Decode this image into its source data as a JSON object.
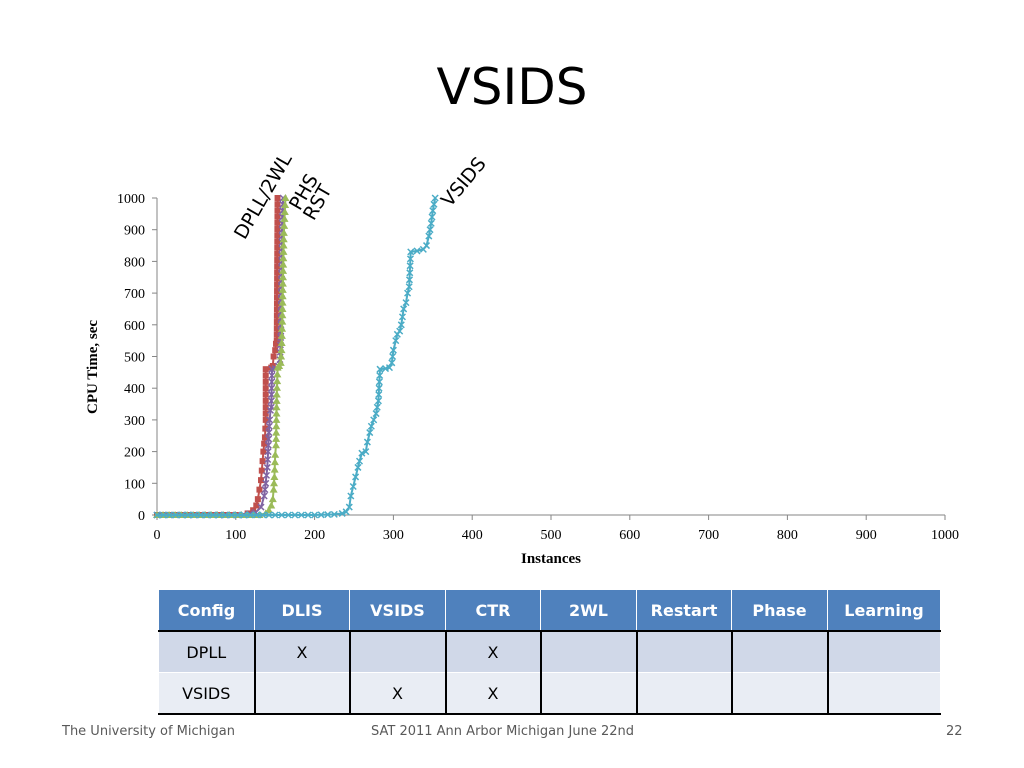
{
  "slide": {
    "title": "VSIDS",
    "footer_left": "The University of Michigan",
    "footer_center": "SAT 2011 Ann Arbor Michigan June 22nd",
    "page_number": "22"
  },
  "chart_data": {
    "type": "line",
    "title": "",
    "xlabel": "Instances",
    "ylabel": "CPU Time, sec",
    "xlim": [
      0,
      1000
    ],
    "ylim": [
      0,
      1000
    ],
    "xticks": [
      0,
      100,
      200,
      300,
      400,
      500,
      600,
      700,
      800,
      900,
      1000
    ],
    "yticks": [
      0,
      100,
      200,
      300,
      400,
      500,
      600,
      700,
      800,
      900,
      1000
    ],
    "series": [
      {
        "name": "DPLL/2WL",
        "color": "#c0504d",
        "marker": "square",
        "points": [
          [
            0,
            0
          ],
          [
            100,
            0
          ],
          [
            115,
            5
          ],
          [
            122,
            15
          ],
          [
            126,
            30
          ],
          [
            128,
            50
          ],
          [
            130,
            80
          ],
          [
            132,
            110
          ],
          [
            133,
            140
          ],
          [
            134,
            170
          ],
          [
            135,
            200
          ],
          [
            136,
            225
          ],
          [
            137,
            245
          ],
          [
            138,
            300
          ],
          [
            138,
            460
          ],
          [
            145,
            465
          ],
          [
            147,
            470
          ],
          [
            148,
            500
          ],
          [
            150,
            520
          ],
          [
            151,
            540
          ],
          [
            152,
            550
          ],
          [
            153,
            1000
          ]
        ]
      },
      {
        "name": "PHS",
        "color": "#8064a2",
        "marker": "x",
        "points": [
          [
            0,
            0
          ],
          [
            110,
            0
          ],
          [
            125,
            8
          ],
          [
            132,
            25
          ],
          [
            136,
            60
          ],
          [
            138,
            100
          ],
          [
            140,
            150
          ],
          [
            141,
            200
          ],
          [
            142,
            260
          ],
          [
            143,
            300
          ],
          [
            144,
            330
          ],
          [
            145,
            340
          ],
          [
            146,
            460
          ],
          [
            150,
            462
          ],
          [
            154,
            470
          ],
          [
            156,
            490
          ],
          [
            157,
            560
          ],
          [
            158,
            740
          ],
          [
            159,
            920
          ],
          [
            160,
            1000
          ]
        ]
      },
      {
        "name": "RST",
        "color": "#9bbb59",
        "marker": "triangle",
        "points": [
          [
            0,
            0
          ],
          [
            130,
            0
          ],
          [
            138,
            5
          ],
          [
            142,
            15
          ],
          [
            145,
            30
          ],
          [
            147,
            50
          ],
          [
            148,
            80
          ],
          [
            149,
            120
          ],
          [
            150,
            190
          ],
          [
            151,
            220
          ],
          [
            152,
            380
          ],
          [
            153,
            465
          ],
          [
            155,
            470
          ],
          [
            157,
            480
          ],
          [
            158,
            520
          ],
          [
            159,
            610
          ],
          [
            160,
            770
          ],
          [
            161,
            890
          ],
          [
            163,
            1000
          ]
        ]
      },
      {
        "name": "VSIDS",
        "color": "#4bacc6",
        "marker": "x",
        "points": [
          [
            0,
            0
          ],
          [
            150,
            0
          ],
          [
            200,
            0
          ],
          [
            225,
            2
          ],
          [
            235,
            5
          ],
          [
            240,
            10
          ],
          [
            244,
            25
          ],
          [
            246,
            60
          ],
          [
            249,
            90
          ],
          [
            252,
            120
          ],
          [
            255,
            150
          ],
          [
            257,
            170
          ],
          [
            260,
            195
          ],
          [
            265,
            200
          ],
          [
            267,
            230
          ],
          [
            270,
            260
          ],
          [
            272,
            280
          ],
          [
            275,
            300
          ],
          [
            278,
            320
          ],
          [
            281,
            360
          ],
          [
            283,
            460
          ],
          [
            290,
            462
          ],
          [
            295,
            465
          ],
          [
            298,
            480
          ],
          [
            300,
            520
          ],
          [
            303,
            550
          ],
          [
            305,
            570
          ],
          [
            308,
            580
          ],
          [
            310,
            600
          ],
          [
            313,
            650
          ],
          [
            316,
            670
          ],
          [
            318,
            700
          ],
          [
            320,
            720
          ],
          [
            322,
            830
          ],
          [
            330,
            833
          ],
          [
            338,
            838
          ],
          [
            342,
            850
          ],
          [
            345,
            880
          ],
          [
            348,
            920
          ],
          [
            350,
            960
          ],
          [
            353,
            1000
          ]
        ]
      }
    ]
  },
  "labels": {
    "dpll2wl": "DPLL/2WL",
    "phs": "PHS",
    "rst": "RST",
    "vsids": "VSIDS"
  },
  "table": {
    "headers": [
      "Config",
      "DLIS",
      "VSIDS",
      "CTR",
      "2WL",
      "Restart",
      "Phase",
      "Learning"
    ],
    "rows": [
      [
        "DPLL",
        "X",
        "",
        "X",
        "",
        "",
        "",
        ""
      ],
      [
        "VSIDS",
        "",
        "X",
        "X",
        "",
        "",
        "",
        ""
      ]
    ]
  }
}
